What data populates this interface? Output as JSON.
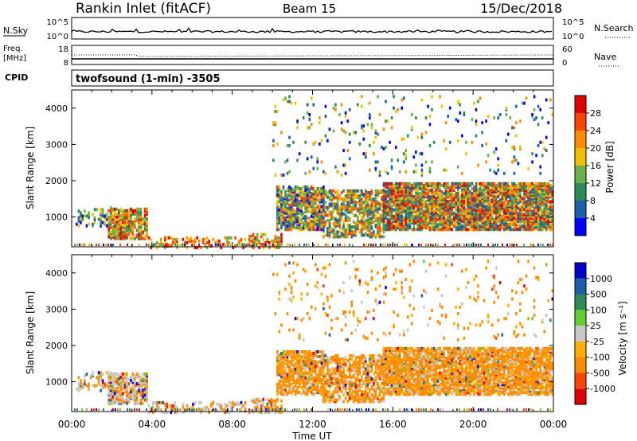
{
  "header": {
    "station": "Rankin Inlet (fitACF)",
    "beam": "Beam 15",
    "date": "15/Dec/2018"
  },
  "status_panels": {
    "nsky_label": "N.Sky",
    "nsky_ticks": [
      "10^5",
      "10^0"
    ],
    "nsearch_label": "N.Search",
    "freq_label_1": "Freq.",
    "freq_label_2": "[MHz]",
    "freq_ticks": [
      "18",
      "8"
    ],
    "nave_label": "Nave",
    "nave_ticks": [
      "60",
      "0"
    ],
    "cpid_label": "CPID",
    "cpid_text": "twofsound (1-min) -3505"
  },
  "colors": {
    "power": [
      "#0000ff",
      "#1a5fa8",
      "#2e8b57",
      "#6ab04c",
      "#f0c000",
      "#ff8c00",
      "#ff4500",
      "#e00000"
    ],
    "velocity": [
      "#e00000",
      "#ff4500",
      "#ff8c00",
      "#ffb000",
      "#c8c8c8",
      "#66cc33",
      "#2e8b57",
      "#1a5fa8",
      "#0000cc"
    ]
  },
  "chart_data": [
    {
      "type": "heatmap",
      "name": "power",
      "ylabel": "Slant Range [km]",
      "yticks": [
        "1000",
        "2000",
        "3000",
        "4000"
      ],
      "ylim": [
        180,
        4500
      ],
      "xticks": [
        "00:00",
        "04:00",
        "08:00",
        "12:00",
        "16:00",
        "20:00",
        "00:00"
      ],
      "colorbar_label": "Power [dB]",
      "colorbar_ticks": [
        "4",
        "8",
        "12",
        "16",
        "20",
        "24",
        "28"
      ],
      "colorbar_range": [
        0,
        32
      ]
    },
    {
      "type": "heatmap",
      "name": "velocity",
      "ylabel": "Slant Range [km]",
      "yticks": [
        "1000",
        "2000",
        "3000",
        "4000"
      ],
      "ylim": [
        180,
        4500
      ],
      "xticks": [
        "00:00",
        "04:00",
        "08:00",
        "12:00",
        "16:00",
        "20:00",
        "00:00"
      ],
      "xlabel": "Time UT",
      "colorbar_label": "Velocity [m s⁻¹]",
      "colorbar_ticks": [
        "1000",
        "500",
        "100",
        "25",
        "-25",
        "-100",
        "-500",
        "-1000"
      ]
    }
  ]
}
